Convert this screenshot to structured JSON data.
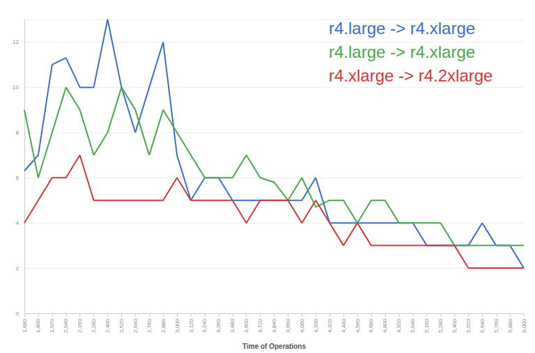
{
  "chart_data": {
    "type": "line",
    "x_label": "Time of Operations",
    "categories": [
      "1,680",
      "1,800",
      "1,920",
      "2,040",
      "2,160",
      "2,280",
      "2,400",
      "2,520",
      "2,640",
      "2,760",
      "2,880",
      "3,000",
      "3,120",
      "3,240",
      "3,360",
      "3,480",
      "3,600",
      "3,720",
      "3,840",
      "3,960",
      "4,080",
      "4,200",
      "4,320",
      "4,440",
      "4,560",
      "4,680",
      "4,800",
      "4,920",
      "5,040",
      "5,160",
      "5,280",
      "5,400",
      "5,520",
      "5,640",
      "5,760",
      "5,880",
      "6,000"
    ],
    "series": [
      {
        "name": "r4.large -> r4.xlarge",
        "color": "#3a70c8",
        "values": [
          6.3,
          7,
          11,
          11.3,
          10,
          10,
          13,
          10,
          8,
          10,
          12,
          7,
          5,
          6,
          6,
          5,
          5,
          5,
          5,
          5,
          5,
          6,
          4,
          4,
          4,
          4,
          4,
          4,
          4,
          3,
          3,
          3,
          3,
          4,
          3,
          3,
          2
        ]
      },
      {
        "name": "r4.large -> r4.xlarge",
        "color": "#4aa84a",
        "values": [
          9,
          6,
          8,
          10,
          9,
          7,
          8,
          10,
          9,
          7,
          9,
          8,
          7,
          6,
          6,
          6,
          7,
          6,
          5.8,
          5,
          6,
          4.7,
          5,
          5,
          4,
          5,
          5,
          4,
          4,
          4,
          4,
          3,
          3,
          3,
          3,
          3,
          3
        ]
      },
      {
        "name": "r4.xlarge -> r4.2xlarge",
        "color": "#d0383a",
        "values": [
          4,
          5,
          6,
          6,
          7,
          5,
          5,
          5,
          5,
          5,
          5,
          6,
          5,
          5,
          5,
          5,
          4,
          5,
          5,
          5,
          4,
          5,
          4,
          3,
          4,
          3,
          3,
          3,
          3,
          3,
          3,
          3,
          2,
          2,
          2,
          2,
          2
        ]
      }
    ],
    "ylim": [
      0,
      13
    ],
    "yticks": [
      0,
      2,
      4,
      6,
      8,
      10,
      12
    ],
    "grid": true,
    "legend": "upper right"
  }
}
